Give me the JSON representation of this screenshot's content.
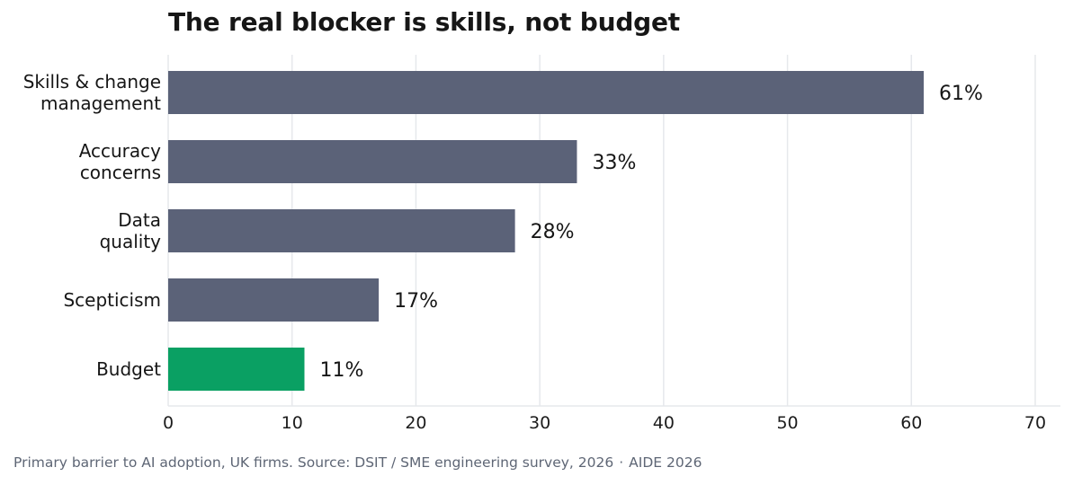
{
  "chart_data": {
    "type": "bar",
    "orientation": "horizontal",
    "title": "The real blocker is skills, not budget",
    "categories": [
      [
        "Skills & change",
        "management"
      ],
      [
        "Accuracy",
        "concerns"
      ],
      [
        "Data",
        "quality"
      ],
      [
        "Scepticism"
      ],
      [
        "Budget"
      ]
    ],
    "values": [
      61,
      33,
      28,
      17,
      11
    ],
    "value_labels": [
      "61%",
      "33%",
      "28%",
      "17%",
      "11%"
    ],
    "colors": [
      "#5b6278",
      "#5b6278",
      "#5b6278",
      "#5b6278",
      "#0aa063"
    ],
    "highlight_category": "Budget",
    "xlim": [
      0,
      70
    ],
    "xticks": [
      0,
      10,
      20,
      30,
      40,
      50,
      60,
      70
    ],
    "grid": "vertical",
    "xlabel": "",
    "ylabel": ""
  },
  "footer": {
    "caption": "Primary barrier to AI adoption, UK firms. Source: DSIT / SME engineering survey, 2026",
    "separator": "·",
    "brand": "AIDE 2026"
  }
}
